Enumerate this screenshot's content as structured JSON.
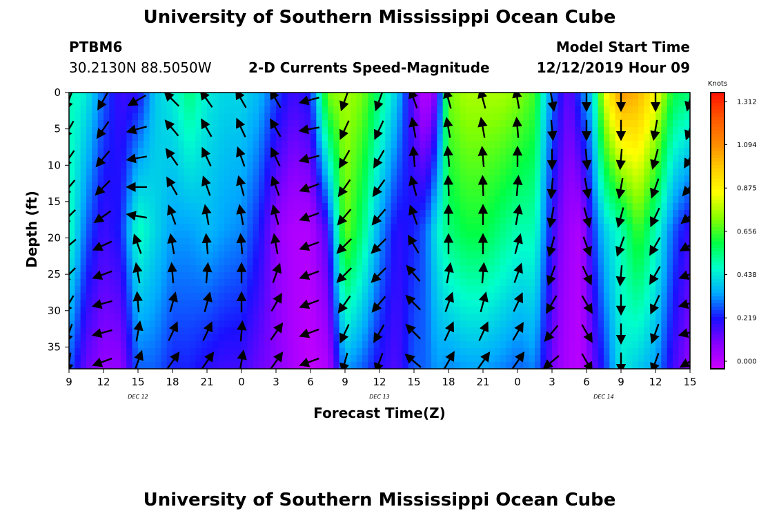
{
  "page": {
    "title_top": "University of Southern Mississippi Ocean Cube",
    "title_bottom": "University of Southern Mississippi Ocean Cube",
    "station_id": "PTBM6",
    "station_coords": "30.2130N 88.5050W",
    "chart_title": "2-D Currents Speed-Magnitude",
    "model_start_label": "Model Start Time",
    "model_start_value": "12/12/2019 Hour 09"
  },
  "chart_data": {
    "type": "heatmap",
    "title": "2-D Currents Speed-Magnitude",
    "xlabel": "Forecast Time(Z)",
    "ylabel": "Depth (ft)",
    "x_tick_labels": [
      "9",
      "12",
      "15",
      "18",
      "21",
      "0",
      "3",
      "6",
      "9",
      "12",
      "15",
      "18",
      "21",
      "0",
      "3",
      "6",
      "9",
      "12",
      "15"
    ],
    "x_hours_from_start": [
      0,
      3,
      6,
      9,
      12,
      15,
      18,
      21,
      24,
      27,
      30,
      33,
      36,
      39,
      42,
      45,
      48,
      51,
      54
    ],
    "date_labels": [
      {
        "label": "DEC 12",
        "hour": 6
      },
      {
        "label": "DEC 13",
        "hour": 27
      },
      {
        "label": "DEC 14",
        "hour": 46.5
      }
    ],
    "y_ticks": [
      0,
      5,
      10,
      15,
      20,
      25,
      30,
      35
    ],
    "ylim": [
      0,
      38
    ],
    "xlim_hours": [
      0,
      54
    ],
    "colorbar": {
      "title": "Knots",
      "tick_labels": [
        "1.312",
        "1.094",
        "0.875",
        "0.656",
        "0.438",
        "0.219",
        "0.000"
      ],
      "tick_values": [
        1.312,
        1.094,
        0.875,
        0.656,
        0.438,
        0.219,
        0.0
      ],
      "range": [
        0,
        1.312
      ],
      "colors": [
        "#cc00ff",
        "#8800ff",
        "#1a10ff",
        "#00aaff",
        "#00ffcc",
        "#00ff44",
        "#88ff00",
        "#ffff00",
        "#ffcc00",
        "#ff8800",
        "#ff5500",
        "#ff1100"
      ]
    },
    "speed_profile": [
      {
        "hour": 0,
        "top": 0.5,
        "mid": 0.5,
        "bot": 0.3
      },
      {
        "hour": 1.5,
        "top": 0.45,
        "mid": 0.3,
        "bot": 0.15
      },
      {
        "hour": 3,
        "top": 0.3,
        "mid": 0.2,
        "bot": 0.1
      },
      {
        "hour": 4.5,
        "top": 0.2,
        "mid": 0.25,
        "bot": 0.1
      },
      {
        "hour": 6,
        "top": 0.22,
        "mid": 0.5,
        "bot": 0.3
      },
      {
        "hour": 7.5,
        "top": 0.4,
        "mid": 0.42,
        "bot": 0.3
      },
      {
        "hour": 9,
        "top": 0.45,
        "mid": 0.35,
        "bot": 0.25
      },
      {
        "hour": 10.5,
        "top": 0.55,
        "mid": 0.35,
        "bot": 0.25
      },
      {
        "hour": 12,
        "top": 0.45,
        "mid": 0.38,
        "bot": 0.22
      },
      {
        "hour": 13.5,
        "top": 0.42,
        "mid": 0.35,
        "bot": 0.2
      },
      {
        "hour": 15,
        "top": 0.42,
        "mid": 0.33,
        "bot": 0.2
      },
      {
        "hour": 16.5,
        "top": 0.38,
        "mid": 0.25,
        "bot": 0.15
      },
      {
        "hour": 18,
        "top": 0.28,
        "mid": 0.1,
        "bot": 0.12
      },
      {
        "hour": 19.5,
        "top": 0.2,
        "mid": 0.05,
        "bot": 0.06
      },
      {
        "hour": 21,
        "top": 0.25,
        "mid": 0.05,
        "bot": 0.02
      },
      {
        "hour": 22.5,
        "top": 0.7,
        "mid": 0.2,
        "bot": 0.05
      },
      {
        "hour": 24,
        "top": 0.75,
        "mid": 0.7,
        "bot": 0.35
      },
      {
        "hour": 25.5,
        "top": 0.7,
        "mid": 0.55,
        "bot": 0.3
      },
      {
        "hour": 27,
        "top": 0.55,
        "mid": 0.35,
        "bot": 0.22
      },
      {
        "hour": 28.5,
        "top": 0.4,
        "mid": 0.22,
        "bot": 0.18
      },
      {
        "hour": 30,
        "top": 0.15,
        "mid": 0.25,
        "bot": 0.3
      },
      {
        "hour": 31,
        "top": 0.02,
        "mid": 0.3,
        "bot": 0.3
      },
      {
        "hour": 32,
        "top": 0.15,
        "mid": 0.45,
        "bot": 0.35
      },
      {
        "hour": 33,
        "top": 0.7,
        "mid": 0.55,
        "bot": 0.33
      },
      {
        "hour": 34.5,
        "top": 0.75,
        "mid": 0.6,
        "bot": 0.35
      },
      {
        "hour": 36,
        "top": 0.75,
        "mid": 0.6,
        "bot": 0.35
      },
      {
        "hour": 37.5,
        "top": 0.75,
        "mid": 0.55,
        "bot": 0.33
      },
      {
        "hour": 39,
        "top": 0.72,
        "mid": 0.5,
        "bot": 0.3
      },
      {
        "hour": 40.5,
        "top": 0.65,
        "mid": 0.5,
        "bot": 0.33
      },
      {
        "hour": 41.5,
        "top": 0.4,
        "mid": 0.3,
        "bot": 0.2
      },
      {
        "hour": 42.5,
        "top": 0.25,
        "mid": 0.15,
        "bot": 0.1
      },
      {
        "hour": 43.5,
        "top": 0.15,
        "mid": 0.08,
        "bot": 0.05
      },
      {
        "hour": 44.5,
        "top": 0.3,
        "mid": 0.05,
        "bot": 0.03
      },
      {
        "hour": 45.5,
        "top": 0.4,
        "mid": 0.25,
        "bot": 0.15
      },
      {
        "hour": 46.5,
        "top": 0.8,
        "mid": 0.4,
        "bot": 0.25
      },
      {
        "hour": 48,
        "top": 1.05,
        "mid": 0.5,
        "bot": 0.45
      },
      {
        "hour": 49.5,
        "top": 1.0,
        "mid": 0.65,
        "bot": 0.4
      },
      {
        "hour": 51,
        "top": 0.85,
        "mid": 0.5,
        "bot": 0.35
      },
      {
        "hour": 52.5,
        "top": 0.6,
        "mid": 0.3,
        "bot": 0.2
      },
      {
        "hour": 54,
        "top": 0.55,
        "mid": 0.2,
        "bot": 0.1
      }
    ],
    "vector_hours": [
      0,
      3,
      6,
      9,
      12,
      15,
      18,
      21,
      24,
      27,
      30,
      33,
      36,
      39,
      42,
      45,
      48,
      51,
      54
    ],
    "vector_depths": [
      1,
      5,
      9,
      13,
      17,
      21,
      25,
      29,
      33,
      37
    ],
    "vector_directions_deg": [
      [
        200,
        210,
        215,
        220,
        225,
        230,
        225,
        210,
        200,
        190
      ],
      [
        210,
        215,
        220,
        225,
        235,
        245,
        250,
        255,
        255,
        250
      ],
      [
        240,
        255,
        260,
        270,
        280,
        340,
        350,
        355,
        10,
        20
      ],
      [
        315,
        320,
        325,
        330,
        340,
        350,
        355,
        15,
        25,
        35
      ],
      [
        325,
        330,
        335,
        340,
        350,
        355,
        5,
        15,
        25,
        35
      ],
      [
        330,
        335,
        340,
        345,
        350,
        355,
        0,
        0,
        5,
        10
      ],
      [
        330,
        330,
        335,
        340,
        345,
        350,
        20,
        30,
        35,
        35
      ],
      [
        255,
        260,
        255,
        250,
        250,
        250,
        250,
        250,
        250,
        250
      ],
      [
        200,
        205,
        210,
        215,
        220,
        225,
        225,
        215,
        205,
        195
      ],
      [
        200,
        205,
        210,
        215,
        220,
        225,
        225,
        220,
        210,
        200
      ],
      [
        340,
        350,
        355,
        345,
        340,
        330,
        320,
        315,
        315,
        310
      ],
      [
        345,
        350,
        355,
        358,
        0,
        0,
        10,
        20,
        25,
        30
      ],
      [
        345,
        350,
        355,
        358,
        0,
        0,
        5,
        15,
        25,
        35
      ],
      [
        350,
        355,
        0,
        5,
        10,
        15,
        20,
        25,
        30,
        35
      ],
      [
        170,
        175,
        180,
        185,
        190,
        195,
        200,
        210,
        220,
        230
      ],
      [
        180,
        180,
        175,
        170,
        165,
        160,
        155,
        150,
        150,
        150
      ],
      [
        180,
        180,
        185,
        190,
        195,
        200,
        185,
        180,
        180,
        180
      ],
      [
        180,
        190,
        195,
        200,
        205,
        210,
        210,
        205,
        200,
        200
      ],
      [
        195,
        200,
        210,
        220,
        230,
        240,
        250,
        255,
        255,
        240
      ]
    ]
  }
}
